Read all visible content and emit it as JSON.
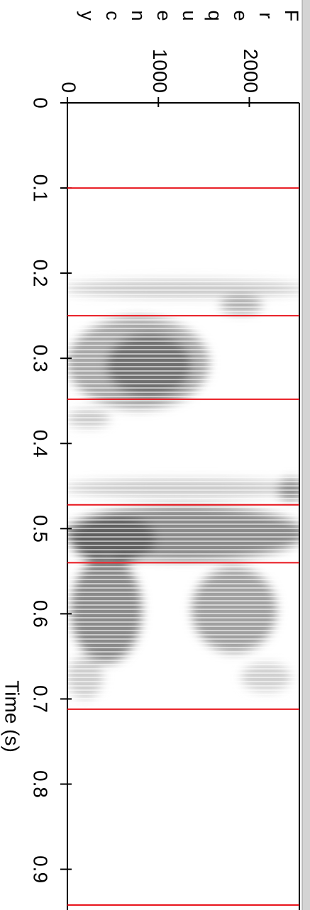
{
  "chart_data": {
    "type": "spectrogram",
    "xlabel": "Time (s)",
    "ylabel": "Frequency",
    "xlim": [
      0,
      0.942
    ],
    "xticks": [
      0,
      0.1,
      0.2,
      0.3,
      0.4,
      0.5,
      0.6,
      0.7,
      0.8,
      0.9
    ],
    "ylim": [
      0,
      2550
    ],
    "yticks": [
      0,
      1000,
      2000
    ],
    "boundaries": {
      "color": "#e8141c",
      "values": [
        0.1,
        0.25,
        0.348,
        0.472,
        0.54,
        0.712,
        0.942
      ]
    }
  }
}
